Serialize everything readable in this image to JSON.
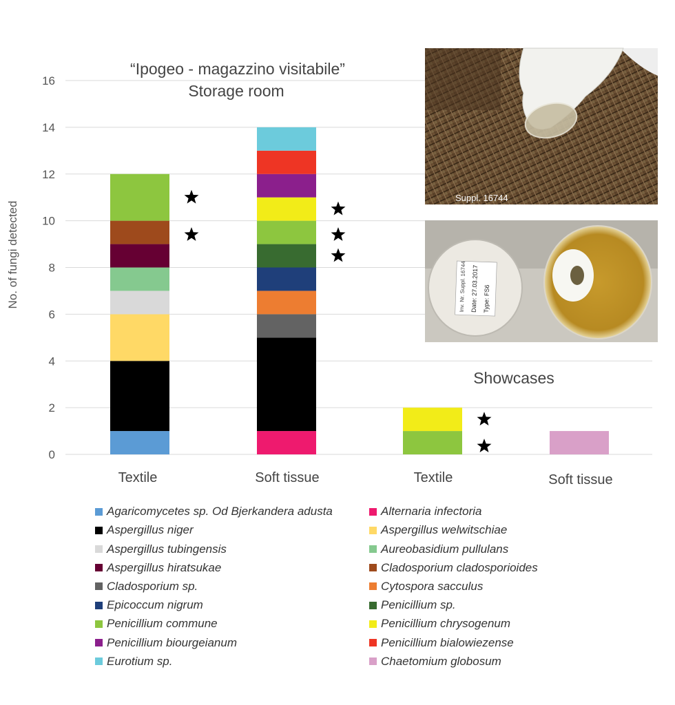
{
  "chart_data": {
    "type": "bar",
    "stacked": true,
    "ylabel": "No. of fungi detected",
    "ylim": [
      0,
      16
    ],
    "yticks": [
      0,
      2,
      4,
      6,
      8,
      10,
      12,
      14,
      16
    ],
    "grid": true,
    "legend_position": "bottom",
    "groups": [
      {
        "title": "“Ipogeo - magazzino visitabile”",
        "subtitle": "Storage room"
      },
      {
        "title": "Showcases"
      }
    ],
    "categories": [
      "Textile",
      "Soft tissue",
      "Textile",
      "Soft tissue"
    ],
    "series": [
      {
        "name": "Agaricomycetes sp. Od Bjerkandera adusta",
        "color": "#5b9bd5",
        "values": [
          1,
          0,
          0,
          0
        ]
      },
      {
        "name": "Alternaria infectoria",
        "color": "#ee1a6e",
        "values": [
          0,
          1,
          0,
          0
        ]
      },
      {
        "name": "Aspergillus niger",
        "color": "#000000",
        "values": [
          3,
          4,
          0,
          0
        ]
      },
      {
        "name": "Aspergillus welwitschiae",
        "color": "#ffd966",
        "values": [
          2,
          0,
          0,
          0
        ]
      },
      {
        "name": "Aspergillus tubingensis",
        "color": "#d9d9d9",
        "values": [
          1,
          0,
          0,
          0
        ]
      },
      {
        "name": "Aureobasidium pullulans",
        "color": "#85c98f",
        "values": [
          1,
          0,
          0,
          0
        ]
      },
      {
        "name": "Aspergillus hiratsukae",
        "color": "#660033",
        "values": [
          1,
          0,
          0,
          0
        ]
      },
      {
        "name": "Cladosporium cladosporioides",
        "color": "#9e4a1c",
        "values": [
          1,
          0,
          0,
          0
        ]
      },
      {
        "name": "Cladosporium sp.",
        "color": "#636363",
        "values": [
          0,
          1,
          0,
          0
        ]
      },
      {
        "name": "Cytospora sacculus",
        "color": "#ed7d31",
        "values": [
          0,
          1,
          0,
          0
        ]
      },
      {
        "name": "Epicoccum nigrum",
        "color": "#1f3f7a",
        "values": [
          0,
          1,
          0,
          0
        ]
      },
      {
        "name": "Penicillium sp.",
        "color": "#386b30",
        "values": [
          0,
          1,
          0,
          0
        ]
      },
      {
        "name": "Penicillium commune",
        "color": "#8dc63f",
        "values": [
          2,
          1,
          1,
          0
        ]
      },
      {
        "name": "Penicillium chrysogenum",
        "color": "#f2ec18",
        "values": [
          0,
          1,
          1,
          0
        ]
      },
      {
        "name": "Penicillium biourgeianum",
        "color": "#8b1f8c",
        "values": [
          0,
          1,
          0,
          0
        ]
      },
      {
        "name": "Penicillium bialowiezense",
        "color": "#ee3524",
        "values": [
          0,
          1,
          0,
          0
        ]
      },
      {
        "name": "Eurotium sp.",
        "color": "#6ccbdc",
        "values": [
          0,
          1,
          0,
          0
        ]
      },
      {
        "name": "Chaetomium globosum",
        "color": "#d9a0c8",
        "values": [
          0,
          0,
          0,
          1
        ]
      }
    ],
    "star_markers": [
      {
        "category_index": 0,
        "y": [
          11,
          9.4
        ]
      },
      {
        "category_index": 1,
        "y": [
          10.5,
          9.4,
          8.5
        ]
      },
      {
        "category_index": 2,
        "y": [
          1.5,
          0.35
        ]
      }
    ]
  },
  "photos": [
    {
      "caption": "Suppl. 16744"
    },
    {
      "label_lines": [
        "Inv. Nr. Suppl. 16744",
        "Date: 27.03.2017",
        "Type: FS6"
      ]
    }
  ],
  "legend_order": [
    0,
    1,
    2,
    3,
    4,
    5,
    6,
    7,
    8,
    9,
    10,
    11,
    12,
    13,
    14,
    15,
    16,
    17
  ]
}
